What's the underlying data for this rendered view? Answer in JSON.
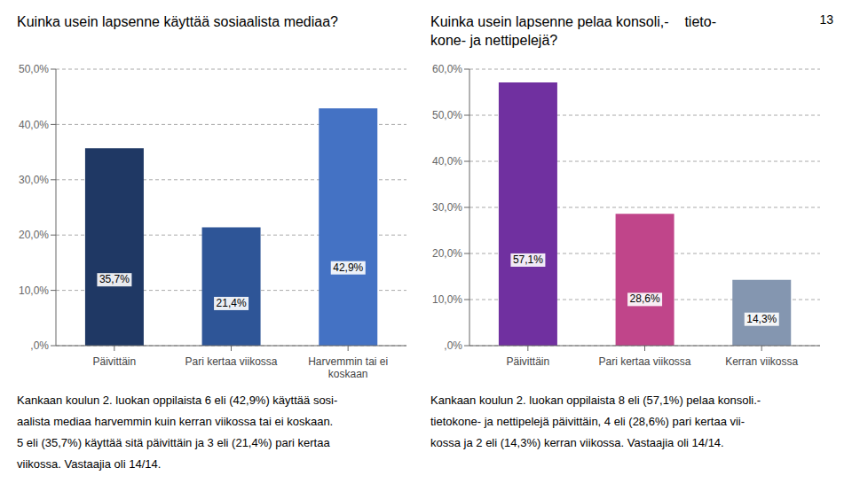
{
  "chart_data": [
    {
      "type": "bar",
      "title": "Kuinka usein lapsenne käyttää sosiaalista mediaa?",
      "categories": [
        "Päivittäin",
        "Pari kertaa viikossa",
        "Harvemmin tai ei\nkoskaan"
      ],
      "values": [
        35.7,
        21.4,
        42.9
      ],
      "value_labels": [
        "35,7%",
        "21,4%",
        "42,9%"
      ],
      "colors": [
        "#1f3864",
        "#2e5597",
        "#4472c4"
      ],
      "ylim": [
        0,
        50
      ],
      "yticks": [
        {
          "value": 0,
          "label": ",0%"
        },
        {
          "value": 10,
          "label": "10,0%"
        },
        {
          "value": 20,
          "label": "20,0%"
        },
        {
          "value": 30,
          "label": "30,0%"
        },
        {
          "value": 40,
          "label": "40,0%"
        },
        {
          "value": 50,
          "label": "50,0%"
        }
      ],
      "grid": true,
      "data_labels": true,
      "annotations": [
        "Kankaan koulun 2. luokan oppilaista 6 eli (42,9%) käyttää sosi-",
        "aalista mediaa harvemmin kuin kerran viikossa tai ei koskaan.",
        "5 eli (35,7%) käyttää sitä päivittäin ja 3 eli (21,4%) pari kertaa",
        "viikossa. Vastaajia oli 14/14."
      ]
    },
    {
      "type": "bar",
      "title": "Kuinka usein lapsenne pelaa konsoli,-    tieto-\nkone- ja nettipelejä?",
      "categories": [
        "Päivittäin",
        "Pari kertaa viikossa",
        "Kerran viikossa"
      ],
      "values": [
        57.1,
        28.6,
        14.3
      ],
      "value_labels": [
        "57,1%",
        "28,6%",
        "14,3%"
      ],
      "colors": [
        "#7030a0",
        "#c0458a",
        "#8496b0"
      ],
      "ylim": [
        0,
        60
      ],
      "yticks": [
        {
          "value": 0,
          "label": ",0%"
        },
        {
          "value": 10,
          "label": "10,0%"
        },
        {
          "value": 20,
          "label": "20,0%"
        },
        {
          "value": 30,
          "label": "30,0%"
        },
        {
          "value": 40,
          "label": "40,0%"
        },
        {
          "value": 50,
          "label": "50,0%"
        },
        {
          "value": 60,
          "label": "60,0%"
        }
      ],
      "grid": true,
      "data_labels": true,
      "annotations": [
        "Kankaan koulun 2. luokan oppilaista 8 eli (57,1%) pelaa konsoli.-",
        "tietokone- ja nettipelejä päivittäin, 4 eli (28,6%) pari kertaa vii-",
        "kossa ja 2 eli (14,3%) kerran viikossa. Vastaajia oli 14/14."
      ]
    }
  ],
  "annotations": [
    "13"
  ]
}
